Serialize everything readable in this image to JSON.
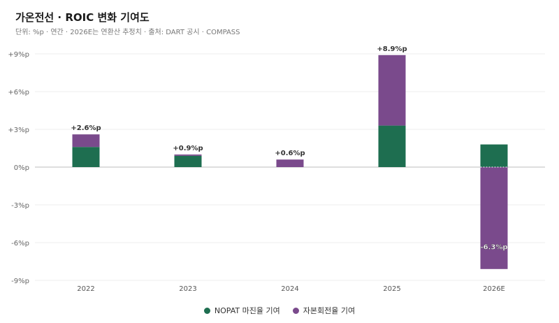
{
  "header": {
    "title": "가온전선 · ROIC 변화 기여도",
    "subtitle": "단위: %p · 연간 · 2026E는 연환산 추정치 · 출처: DART 공시 · COMPASS"
  },
  "colors": {
    "nopat": "#1e6e50",
    "capital": "#7a4a8c",
    "grid": "#ececec",
    "axis": "#bdbdbd"
  },
  "chart_data": {
    "type": "bar",
    "stacked": true,
    "categories": [
      "2022",
      "2023",
      "2024",
      "2025",
      "2026E"
    ],
    "series": [
      {
        "name": "NOPAT 마진율 기여",
        "values": [
          1.6,
          0.9,
          0.0,
          3.3,
          1.8
        ]
      },
      {
        "name": "자본회전율 기여",
        "values": [
          1.0,
          0.1,
          0.6,
          5.6,
          -8.1
        ]
      }
    ],
    "totals": [
      2.6,
      0.9,
      0.6,
      8.9,
      -6.3
    ],
    "total_labels": [
      "+2.6%p",
      "+0.9%p",
      "+0.6%p",
      "+8.9%p",
      "-6.3%p"
    ],
    "yticks": [
      9,
      6,
      3,
      0,
      -3,
      -6,
      -9
    ],
    "ytick_labels": [
      "+9%p",
      "+6%p",
      "+3%p",
      "0%p",
      "-3%p",
      "-6%p",
      "-9%p"
    ],
    "ylim": [
      -9,
      9
    ],
    "grid": true,
    "legend_position": "bottom-center"
  }
}
